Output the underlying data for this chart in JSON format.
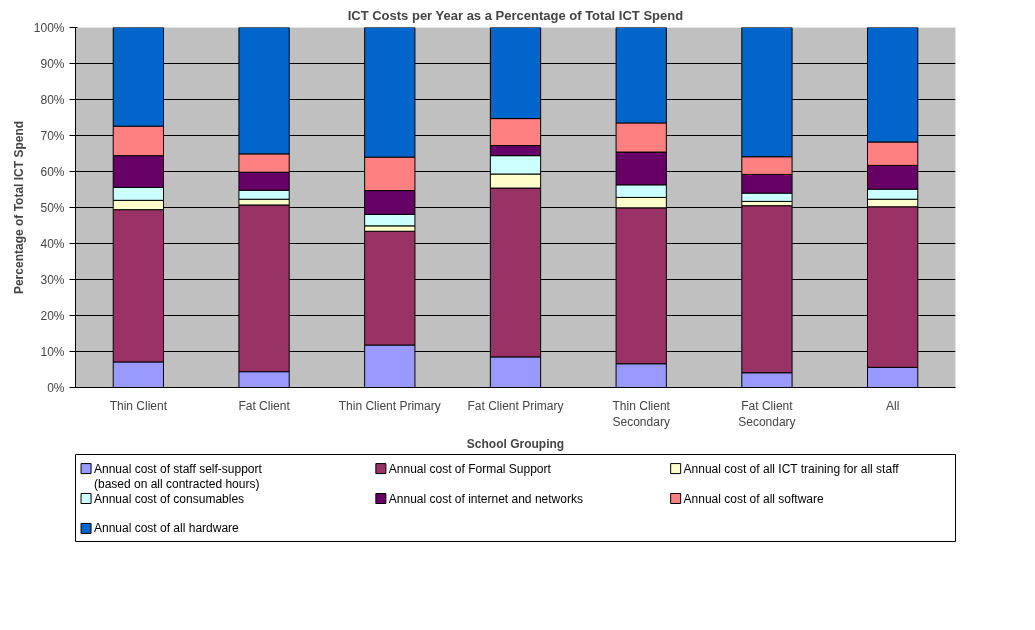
{
  "chart_data": {
    "type": "bar",
    "stacked": true,
    "title": "ICT Costs per Year as a Percentage of Total ICT Spend",
    "xlabel": "School Grouping",
    "ylabel": "Percentage of Total ICT Spend",
    "categories": [
      "Thin Client",
      "Fat Client",
      "Thin Client Primary",
      "Fat Client Primary",
      "Thin Client Secondary",
      "Fat Client Secondary",
      "All"
    ],
    "series": [
      {
        "name": "Annual cost of staff self-support (based on all contracted hours)",
        "color": "#9999ff",
        "values": [
          7.1,
          4.4,
          11.8,
          8.5,
          6.6,
          4.1,
          5.6
        ]
      },
      {
        "name": "Annual cost of Formal Support",
        "color": "#993366",
        "values": [
          42.3,
          46.3,
          31.6,
          46.9,
          43.3,
          46.4,
          44.6
        ]
      },
      {
        "name": "Annual cost of all ICT training for all staff",
        "color": "#ffffcc",
        "values": [
          2.6,
          1.6,
          1.5,
          3.9,
          2.9,
          1.2,
          2.1
        ]
      },
      {
        "name": "Annual cost of consumables",
        "color": "#ccffff",
        "values": [
          3.6,
          2.5,
          3.2,
          5.1,
          3.5,
          2.3,
          2.8
        ]
      },
      {
        "name": "Annual cost of internet and networks",
        "color": "#660066",
        "values": [
          8.8,
          5.0,
          6.6,
          2.8,
          9.1,
          5.2,
          6.6
        ]
      },
      {
        "name": "Annual cost of all software",
        "color": "#ff8080",
        "values": [
          8.2,
          5.1,
          9.3,
          7.5,
          8.1,
          4.9,
          6.5
        ]
      },
      {
        "name": "Annual cost of all hardware",
        "color": "#0066cc",
        "values": [
          27.5,
          35.1,
          36.0,
          25.3,
          26.5,
          35.9,
          31.8
        ]
      }
    ],
    "ylim": [
      0,
      100
    ],
    "yticks": [
      {
        "value": 0,
        "label": "0%"
      },
      {
        "value": 10,
        "label": "10%"
      },
      {
        "value": 20,
        "label": "20%"
      },
      {
        "value": 30,
        "label": "30%"
      },
      {
        "value": 40,
        "label": "40%"
      },
      {
        "value": 50,
        "label": "50%"
      },
      {
        "value": 60,
        "label": "60%"
      },
      {
        "value": 70,
        "label": "70%"
      },
      {
        "value": 80,
        "label": "80%"
      },
      {
        "value": 90,
        "label": "90%"
      },
      {
        "value": 100,
        "label": "100%"
      }
    ],
    "grid": "y",
    "legend": "bottom"
  }
}
